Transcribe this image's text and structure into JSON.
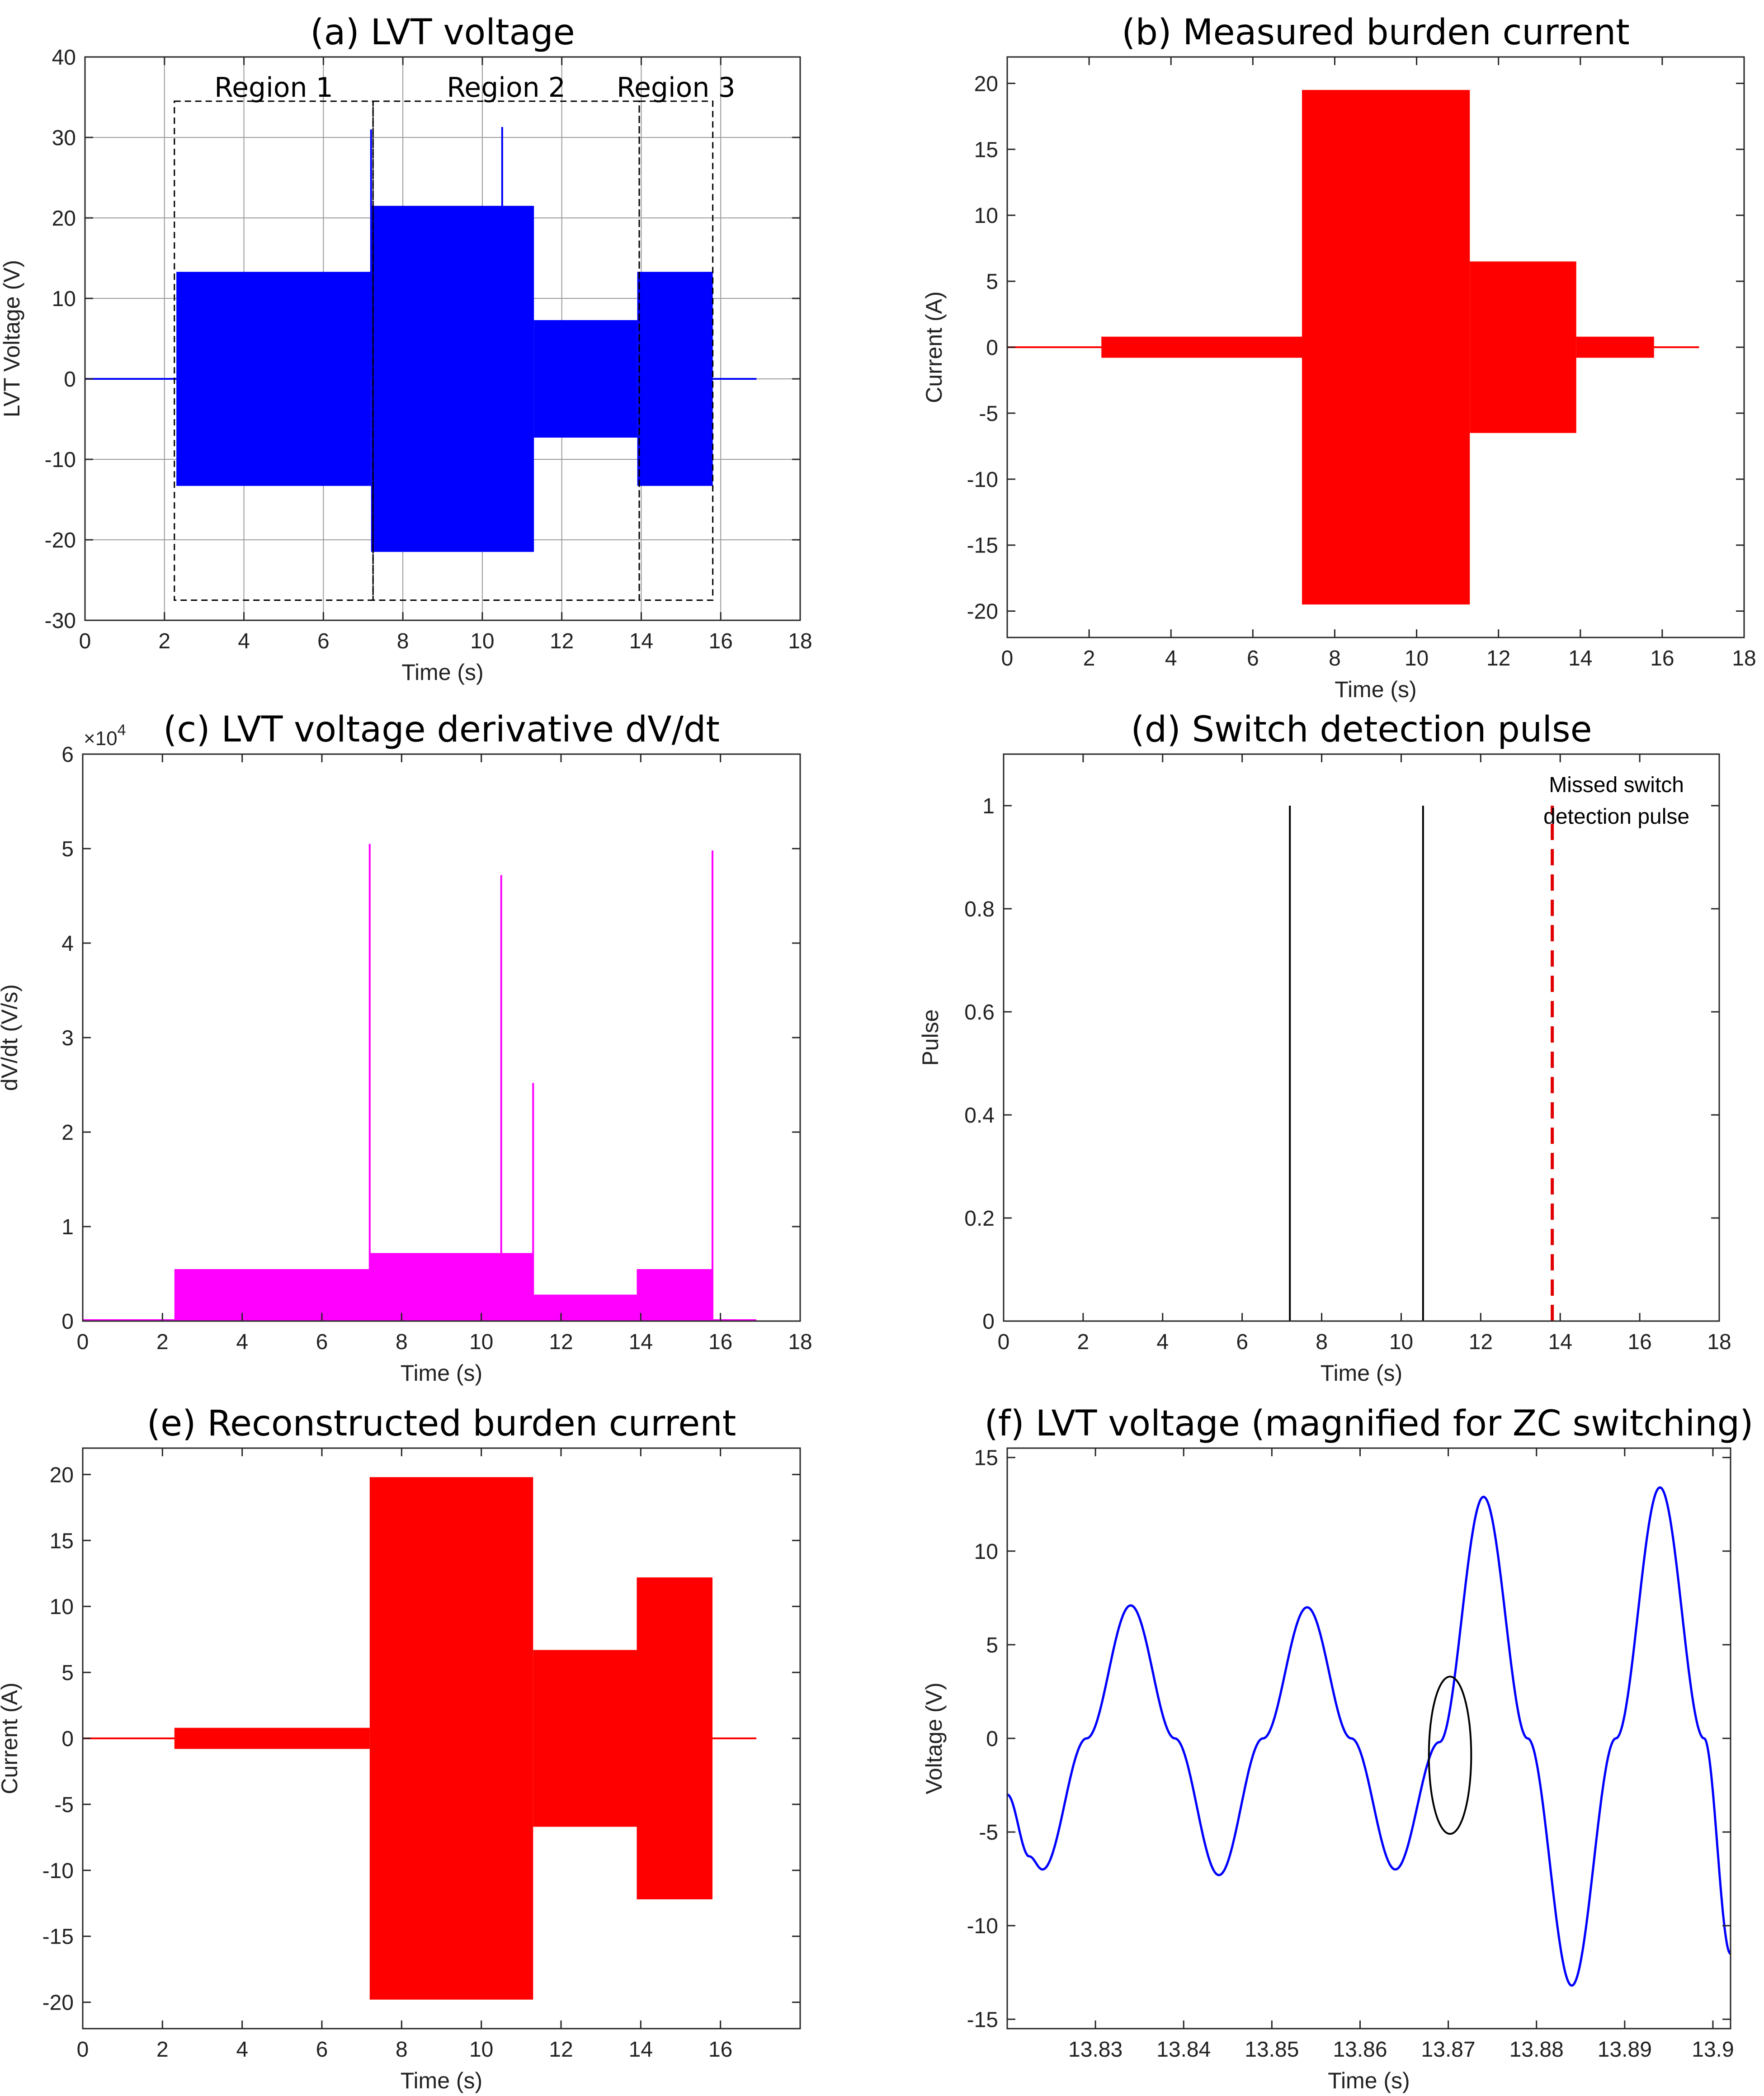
{
  "chart_data": [
    {
      "id": "a",
      "type": "area",
      "title": "(a) LVT voltage",
      "xlabel": "Time (s)",
      "ylabel": "LVT Voltage (V)",
      "xlim": [
        0,
        18
      ],
      "ylim": [
        -30,
        40
      ],
      "xticks": [
        0,
        2,
        4,
        6,
        8,
        10,
        12,
        14,
        16,
        18
      ],
      "yticks": [
        -30,
        -20,
        -10,
        0,
        10,
        20,
        30,
        40
      ],
      "grid": true,
      "color": "#0000ff",
      "baseline": [
        [
          0,
          2.3
        ],
        [
          15.8,
          16.9
        ]
      ],
      "segments": [
        {
          "x": [
            2.3,
            7.2
          ],
          "amp": 13.3
        },
        {
          "x": [
            7.2,
            11.3
          ],
          "amp": 21.5
        },
        {
          "x": [
            11.3,
            13.9
          ],
          "amp": 7.3
        },
        {
          "x": [
            13.9,
            15.8
          ],
          "amp": 13.3
        }
      ],
      "spikes": [
        {
          "x": 7.2,
          "y": 31
        },
        {
          "x": 10.5,
          "y": 31.3
        }
      ],
      "regions": [
        {
          "label": "Region 1",
          "x": [
            2.25,
            7.25
          ],
          "y": [
            -27.5,
            34.5
          ]
        },
        {
          "label": "Region 2",
          "x": [
            7.25,
            13.95
          ],
          "y": [
            -27.5,
            34.5
          ]
        },
        {
          "label": "Region 3",
          "x": [
            13.95,
            15.8
          ],
          "y": [
            -27.5,
            34.5
          ]
        }
      ]
    },
    {
      "id": "b",
      "type": "area",
      "title": "(b) Measured burden current",
      "xlabel": "Time (s)",
      "ylabel": "Current (A)",
      "xlim": [
        0,
        18
      ],
      "ylim": [
        -22,
        22
      ],
      "xticks": [
        0,
        2,
        4,
        6,
        8,
        10,
        12,
        14,
        16,
        18
      ],
      "yticks": [
        -20,
        -15,
        -10,
        -5,
        0,
        5,
        10,
        15,
        20
      ],
      "grid": false,
      "color": "#ff0000",
      "baseline": [
        [
          0,
          2.3
        ],
        [
          15.8,
          16.9
        ]
      ],
      "segments": [
        {
          "x": [
            2.3,
            7.2
          ],
          "amp": 0.8
        },
        {
          "x": [
            7.2,
            11.3
          ],
          "amp": 19.5
        },
        {
          "x": [
            11.3,
            13.9
          ],
          "amp": 6.5
        },
        {
          "x": [
            13.9,
            15.8
          ],
          "amp": 0.8
        }
      ],
      "spikes": []
    },
    {
      "id": "c",
      "type": "area",
      "title": "(c) LVT voltage derivative dV/dt",
      "xlabel": "Time (s)",
      "ylabel": "dV/dt (V/s)",
      "y_multiplier": "×10",
      "y_exponent": "4",
      "xlim": [
        0,
        18
      ],
      "ylim": [
        0,
        6
      ],
      "xticks": [
        0,
        2,
        4,
        6,
        8,
        10,
        12,
        14,
        16,
        18
      ],
      "yticks": [
        0,
        1,
        2,
        3,
        4,
        5,
        6
      ],
      "grid": false,
      "color": "#ff00ff",
      "baseline": [
        [
          0,
          2.3
        ],
        [
          15.8,
          16.9
        ]
      ],
      "levels": [
        {
          "x": [
            2.3,
            7.2
          ],
          "y": 0.55
        },
        {
          "x": [
            7.2,
            11.3
          ],
          "y": 0.72
        },
        {
          "x": [
            11.3,
            13.9
          ],
          "y": 0.28
        },
        {
          "x": [
            13.9,
            15.8
          ],
          "y": 0.55
        }
      ],
      "spikes": [
        {
          "x": 7.2,
          "y": 5.05
        },
        {
          "x": 10.5,
          "y": 4.72
        },
        {
          "x": 11.3,
          "y": 2.52
        },
        {
          "x": 15.8,
          "y": 4.98
        }
      ]
    },
    {
      "id": "d",
      "type": "line",
      "title": "(d) Switch detection pulse",
      "xlabel": "Time (s)",
      "ylabel": "Pulse",
      "xlim": [
        0,
        18
      ],
      "ylim": [
        0,
        1.1
      ],
      "xticks": [
        0,
        2,
        4,
        6,
        8,
        10,
        12,
        14,
        16,
        18
      ],
      "yticks": [
        0,
        0.2,
        0.4,
        0.6,
        0.8,
        1
      ],
      "grid": false,
      "pulses": [
        {
          "x": 7.2,
          "y": 1
        },
        {
          "x": 10.55,
          "y": 1
        }
      ],
      "missed_pulse": {
        "x": 13.8,
        "y": 1,
        "color": "#e00000"
      },
      "annotation_lines": [
        "Missed switch",
        "detection pulse"
      ]
    },
    {
      "id": "e",
      "type": "area",
      "title": "(e) Reconstructed burden current",
      "xlabel": "Time (s)",
      "ylabel": "Current (A)",
      "xlim": [
        0,
        18
      ],
      "ylim": [
        -22,
        22
      ],
      "xticks": [
        0,
        2,
        4,
        6,
        8,
        10,
        12,
        14,
        16
      ],
      "yticks": [
        -20,
        -15,
        -10,
        -5,
        0,
        5,
        10,
        15,
        20
      ],
      "grid": false,
      "color": "#ff0000",
      "baseline": [
        [
          0,
          2.3
        ],
        [
          15.8,
          16.9
        ]
      ],
      "segments": [
        {
          "x": [
            2.3,
            7.2
          ],
          "amp": 0.8
        },
        {
          "x": [
            7.2,
            11.3
          ],
          "amp": 19.8
        },
        {
          "x": [
            11.3,
            13.9
          ],
          "amp": 6.7
        },
        {
          "x": [
            13.9,
            15.8
          ],
          "amp": 12.2
        }
      ],
      "spikes": []
    },
    {
      "id": "f",
      "type": "line",
      "title": "(f) LVT voltage (magnified for ZC switching)",
      "xlabel": "Time (s)",
      "ylabel": "Voltage (V)",
      "xlim": [
        13.82,
        13.902
      ],
      "ylim": [
        -15.5,
        15.5
      ],
      "xticks": [
        13.83,
        13.84,
        13.85,
        13.86,
        13.87,
        13.88,
        13.89,
        13.9
      ],
      "xtick_labels": [
        "13.83",
        "13.84",
        "13.85",
        "13.86",
        "13.87",
        "13.88",
        "13.89",
        "13.9"
      ],
      "yticks": [
        -15,
        -10,
        -5,
        0,
        5,
        10,
        15
      ],
      "grid": false,
      "color": "#0000ff",
      "series": [
        {
          "name": "LVT voltage",
          "x": [
            13.82,
            13.8225,
            13.824,
            13.829,
            13.834,
            13.839,
            13.844,
            13.849,
            13.854,
            13.859,
            13.864,
            13.869,
            13.874,
            13.879,
            13.884,
            13.889,
            13.894,
            13.899,
            13.902
          ],
          "y": [
            -3.0,
            -6.3,
            -7.0,
            0.0,
            7.1,
            0.0,
            -7.3,
            0.0,
            7.0,
            0.0,
            -7.0,
            -0.2,
            12.9,
            0.0,
            -13.2,
            0.0,
            13.4,
            0.0,
            -11.5
          ]
        }
      ],
      "circle": {
        "x": 13.8702,
        "y": -0.9,
        "rx": 0.0024,
        "ry": 4.2
      }
    }
  ]
}
